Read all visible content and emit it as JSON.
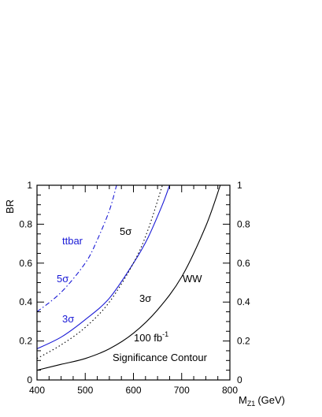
{
  "chart_data": {
    "type": "line",
    "xlabel": "M",
    "xlabel_sub": "Z1",
    "xlabel_unit": "(GeV)",
    "ylabel": "BR",
    "xlim": [
      400,
      800
    ],
    "ylim": [
      0,
      1
    ],
    "x_ticks": [
      "400",
      "500",
      "600",
      "700",
      "800"
    ],
    "y_ticks": [
      "0",
      "0.2",
      "0.4",
      "0.6",
      "0.8",
      "1"
    ],
    "y_ticks_right": [
      "0",
      "0.2",
      "0.4",
      "0.6",
      "0.8",
      "1"
    ],
    "grid": false,
    "colors": {
      "ww": "#000000",
      "ttbar": "#1a1ad6",
      "axis": "#000000"
    },
    "series": [
      {
        "name": "ttbar 5σ",
        "style": "dashdot",
        "color": "#1a1ad6",
        "x": [
          400,
          450,
          500,
          525,
          550,
          565
        ],
        "y": [
          0.35,
          0.45,
          0.6,
          0.72,
          0.87,
          1.0
        ]
      },
      {
        "name": "ttbar 3σ",
        "style": "solid",
        "color": "#1a1ad6",
        "x": [
          400,
          450,
          500,
          550,
          600,
          630,
          660,
          675
        ],
        "y": [
          0.16,
          0.22,
          0.31,
          0.42,
          0.6,
          0.73,
          0.9,
          1.0
        ]
      },
      {
        "name": "WW 5σ",
        "style": "dotted",
        "color": "#000000",
        "x": [
          400,
          450,
          500,
          550,
          600,
          630,
          660
        ],
        "y": [
          0.11,
          0.18,
          0.27,
          0.4,
          0.6,
          0.77,
          1.0
        ]
      },
      {
        "name": "WW 3σ",
        "style": "solid",
        "color": "#000000",
        "x": [
          400,
          450,
          500,
          550,
          600,
          650,
          700,
          750,
          780
        ],
        "y": [
          0.05,
          0.08,
          0.11,
          0.16,
          0.24,
          0.36,
          0.53,
          0.79,
          1.0
        ]
      }
    ],
    "annotations": {
      "ttbar": "ttbar",
      "ttbar_5sigma": "5σ",
      "ttbar_3sigma": "3σ",
      "ww_5sigma": "5σ",
      "ww_3sigma": "3σ",
      "ww": "WW",
      "lumi": "100 fb",
      "lumi_exp": "-1",
      "title": "Significance Contour"
    }
  }
}
